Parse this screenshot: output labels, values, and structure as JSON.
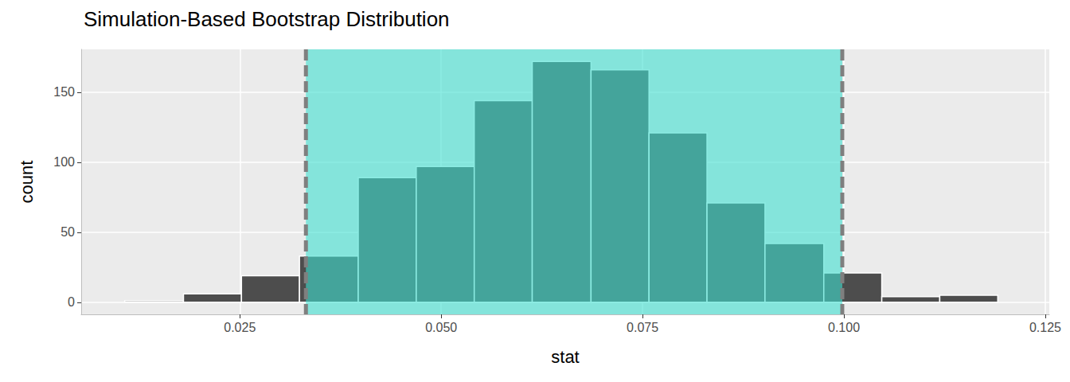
{
  "chart_data": {
    "type": "histogram",
    "title": "Simulation-Based Bootstrap Distribution",
    "x_label": "stat",
    "y_label": "count",
    "bins": [
      0.0107,
      0.018,
      0.0252,
      0.0324,
      0.0397,
      0.0469,
      0.0541,
      0.0613,
      0.0686,
      0.0758,
      0.083,
      0.0902,
      0.0975,
      0.1047,
      0.1119,
      0.1191
    ],
    "values": [
      1,
      6,
      19,
      33,
      89,
      97,
      144,
      172,
      166,
      121,
      71,
      42,
      21,
      4,
      5
    ],
    "color": "#4d4d4d",
    "ci": [
      0.0332,
      0.0998
    ],
    "xlim": [
      0.0053,
      0.1255
    ],
    "xticks": [
      {
        "value": 0.025,
        "label": "0.025"
      },
      {
        "value": 0.05,
        "label": "0.050"
      },
      {
        "value": 0.075,
        "label": "0.075"
      },
      {
        "value": 0.1,
        "label": "0.100"
      },
      {
        "value": 0.125,
        "label": "0.125"
      }
    ],
    "ylim": [
      -8.6,
      180.6
    ],
    "yticks": [
      0,
      50,
      100,
      150
    ],
    "grid": true
  }
}
